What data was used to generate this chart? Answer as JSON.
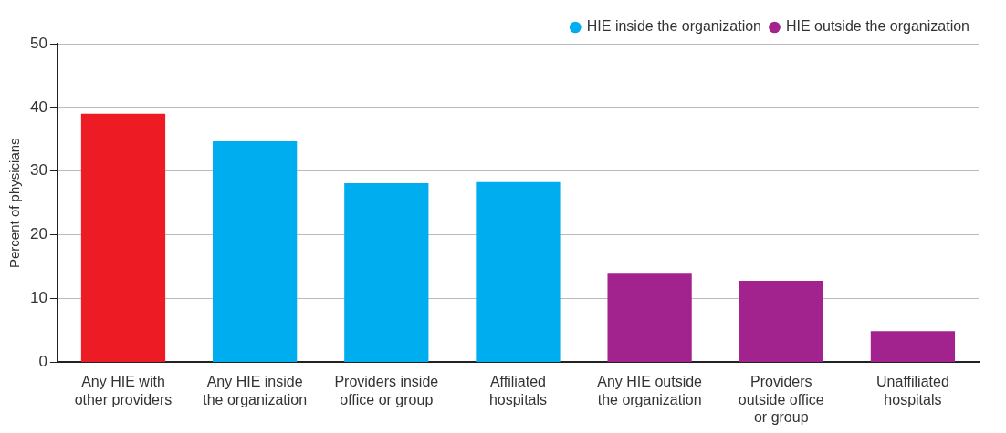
{
  "chart_data": {
    "type": "bar",
    "ylabel": "Percent of physicians",
    "categories": [
      "Any HIE with other providers",
      "Any HIE inside the organization",
      "Providers inside office or group",
      "Affiliated hospitals",
      "Any HIE outside the organization",
      "Providers outside office or group",
      "Unaffiliated hospitals"
    ],
    "series": [
      {
        "color": "#ed1c24",
        "values": [
          39,
          null,
          null,
          null,
          null,
          null,
          null
        ]
      },
      {
        "name": "HIE inside the organization",
        "color": "#00aeef",
        "values": [
          null,
          34.7,
          28.1,
          28.3,
          null,
          null,
          null
        ]
      },
      {
        "name": "HIE outside the organization",
        "color": "#a3238e",
        "values": [
          null,
          null,
          null,
          null,
          13.9,
          12.8,
          4.9
        ]
      }
    ],
    "ylim": [
      0,
      50
    ],
    "yticks": [
      0,
      10,
      20,
      30,
      40,
      50
    ],
    "grid": "y",
    "legend": "top right"
  }
}
